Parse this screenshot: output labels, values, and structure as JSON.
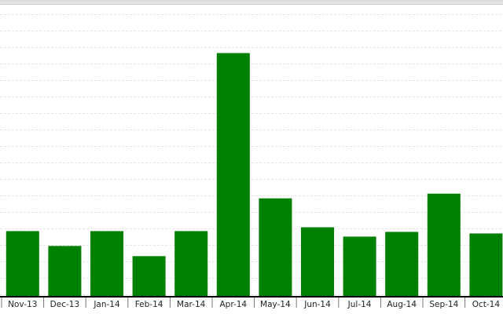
{
  "chart_data": {
    "type": "bar",
    "title": "",
    "xlabel": "",
    "ylabel": "",
    "categories": [
      "Nov-13",
      "Dec-13",
      "Jan-14",
      "Feb-14",
      "Mar-14",
      "Apr-14",
      "May-14",
      "Jun-14",
      "Jul-14",
      "Aug-14",
      "Sep-14",
      "Oct-14"
    ],
    "values": [
      84,
      65,
      84,
      52,
      84,
      312,
      126,
      89,
      77,
      83,
      132,
      81
    ],
    "ylim": [
      0,
      380
    ],
    "grid": true,
    "legend": "none",
    "bar_color": "#008000",
    "grid_color": "#e6e6e6"
  }
}
